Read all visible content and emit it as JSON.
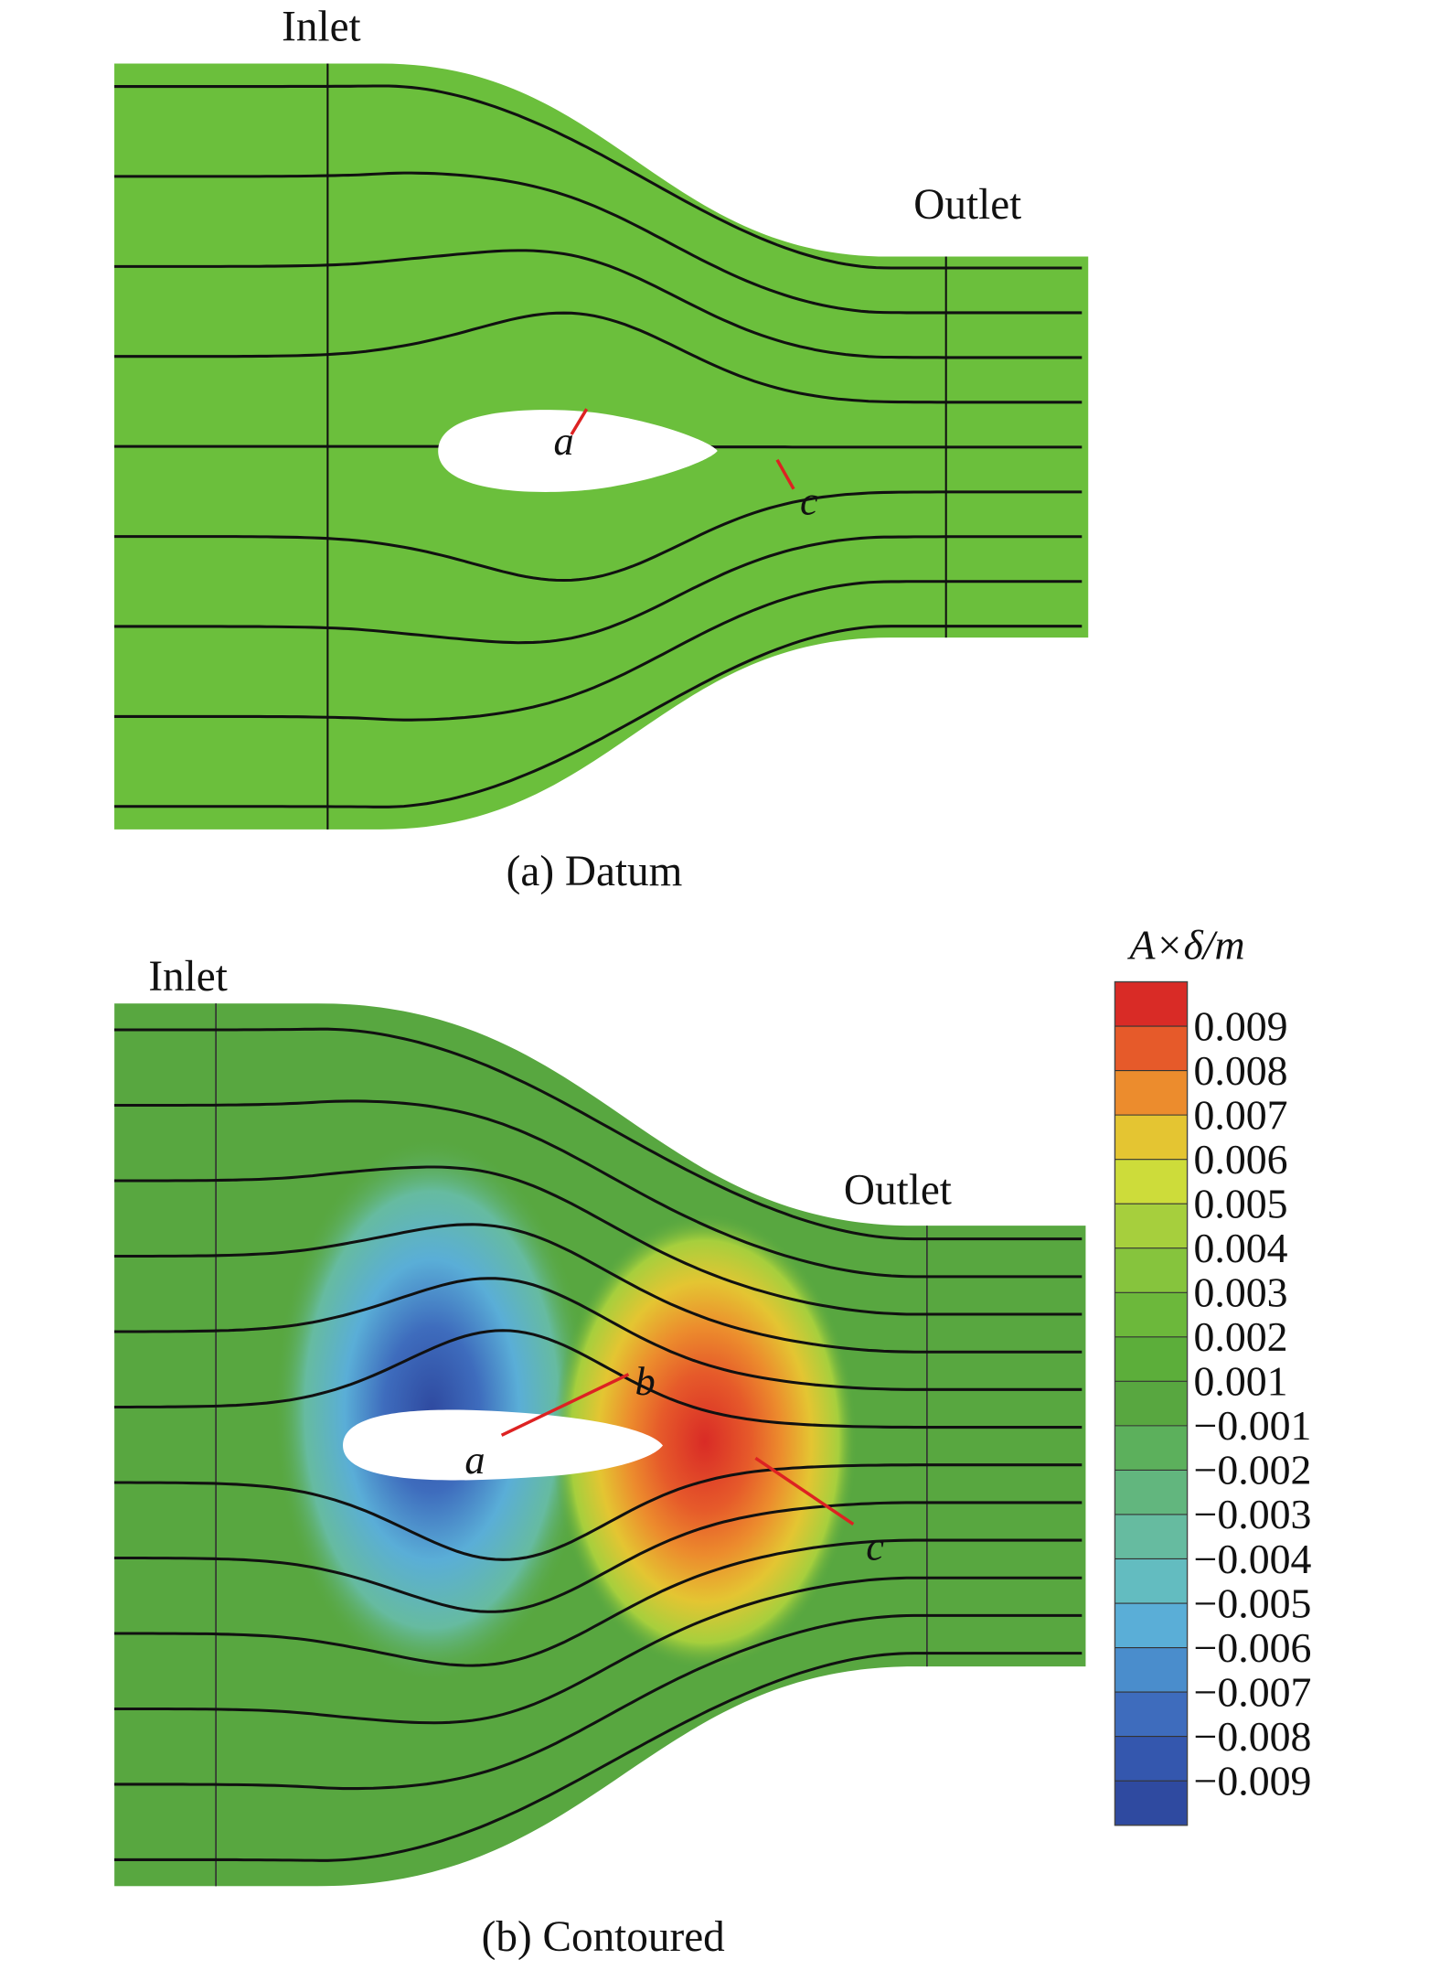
{
  "panel_a": {
    "inlet": "Inlet",
    "outlet": "Outlet",
    "point_a": "a",
    "point_c": "c",
    "caption": "(a) Datum"
  },
  "panel_b": {
    "inlet": "Inlet",
    "outlet": "Outlet",
    "point_a": "a",
    "point_b": "b",
    "point_c": "c",
    "caption": "(b) Contoured"
  },
  "colorbar": {
    "title": "A×δ/m",
    "labels": [
      "0.009",
      "0.008",
      "0.007",
      "0.006",
      "0.005",
      "0.004",
      "0.003",
      "0.002",
      "0.001",
      "−0.001",
      "−0.002",
      "−0.003",
      "−0.004",
      "−0.005",
      "−0.006",
      "−0.007",
      "−0.008",
      "−0.009"
    ],
    "colors": [
      "#d92b26",
      "#e65a2a",
      "#ec8c2d",
      "#e4c532",
      "#cddc3a",
      "#a6cf3d",
      "#86c43d",
      "#6cb83b",
      "#5cae3a",
      "#58a740",
      "#5cb05c",
      "#62b67e",
      "#66bba0",
      "#63bcc0",
      "#5aaed7",
      "#4a8dcc",
      "#3e6cbd",
      "#3457ae",
      "#2f4aa0"
    ]
  }
}
